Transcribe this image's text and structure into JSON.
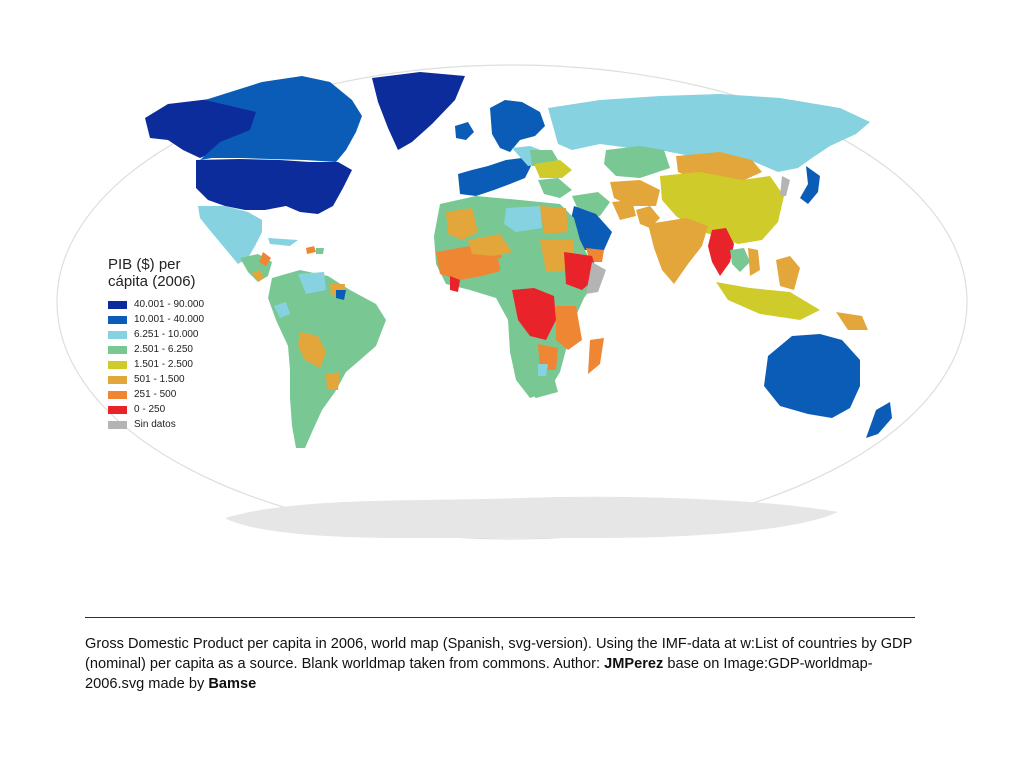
{
  "legend": {
    "title": "PIB ($) per\ncápita (2006)",
    "items": [
      {
        "label": "40.001 - 90.000",
        "color": "#0b2c9a"
      },
      {
        "label": "10.001 - 40.000",
        "color": "#0a5cb6"
      },
      {
        "label": "6.251 - 10.000",
        "color": "#86d2e0"
      },
      {
        "label": "2.501 - 6.250",
        "color": "#79c893"
      },
      {
        "label": "1.501 - 2.500",
        "color": "#cfcb2a"
      },
      {
        "label": "501 - 1.500",
        "color": "#e2a63b"
      },
      {
        "label": "251 - 500",
        "color": "#ef8634"
      },
      {
        "label": "0 - 250",
        "color": "#e8232a"
      },
      {
        "label": "Sin datos",
        "color": "#b4b4b4"
      }
    ]
  },
  "caption": {
    "part1": "Gross Domestic Product per capita in 2006, world map (Spanish, svg-version). Using the IMF-data at w:List of countries by GDP (nominal) per capita as a source. Blank worldmap taken from commons. Author: ",
    "author": "JMPerez",
    "part2": " base on Image:GDP-worldmap-2006.svg made by ",
    "source_author": "Bamse"
  },
  "colors": {
    "ocean_outline": "#dcdcdc",
    "antarctica": "#e6e6e6"
  }
}
